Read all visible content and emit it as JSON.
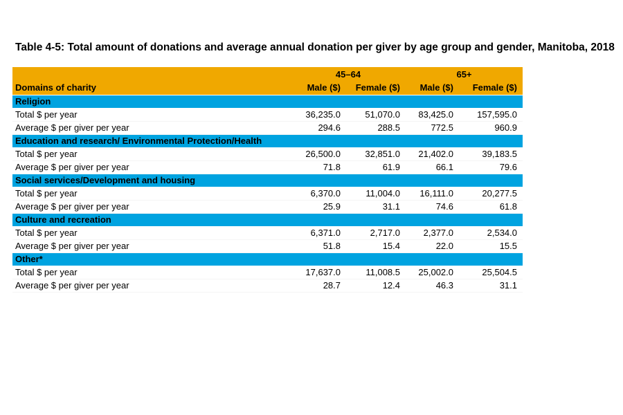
{
  "title": "Table 4-5: Total amount of donations and average annual donation per giver by age group and gender, Manitoba, 2018",
  "table": {
    "colors": {
      "header_bg": "#F0A800",
      "section_bg": "#00A3E0",
      "text": "#000000",
      "page_bg": "#ffffff"
    },
    "col_groups": [
      {
        "label": "45–64"
      },
      {
        "label": "65+"
      }
    ],
    "columns": [
      "Domains of charity",
      "Male ($)",
      "Female ($)",
      "Male ($)",
      "Female ($)"
    ],
    "row_labels": {
      "total": "Total $ per year",
      "average": "Average $ per giver per year"
    },
    "sections": [
      {
        "name": "Religion",
        "total": [
          "36,235.0",
          "51,070.0",
          "83,425.0",
          "157,595.0"
        ],
        "average": [
          "294.6",
          "288.5",
          "772.5",
          "960.9"
        ]
      },
      {
        "name": "Education and research/ Environmental Protection/Health",
        "total": [
          "26,500.0",
          "32,851.0",
          "21,402.0",
          "39,183.5"
        ],
        "average": [
          "71.8",
          "61.9",
          "66.1",
          "79.6"
        ]
      },
      {
        "name": "Social services/Development and housing",
        "total": [
          "6,370.0",
          "11,004.0",
          "16,111.0",
          "20,277.5"
        ],
        "average": [
          "25.9",
          "31.1",
          "74.6",
          "61.8"
        ]
      },
      {
        "name": "Culture and recreation",
        "total": [
          "6,371.0",
          "2,717.0",
          "2,377.0",
          "2,534.0"
        ],
        "average": [
          "51.8",
          "15.4",
          "22.0",
          "15.5"
        ]
      },
      {
        "name": "Other*",
        "total": [
          "17,637.0",
          "11,008.5",
          "25,002.0",
          "25,504.5"
        ],
        "average": [
          "28.7",
          "12.4",
          "46.3",
          "31.1"
        ]
      }
    ]
  }
}
